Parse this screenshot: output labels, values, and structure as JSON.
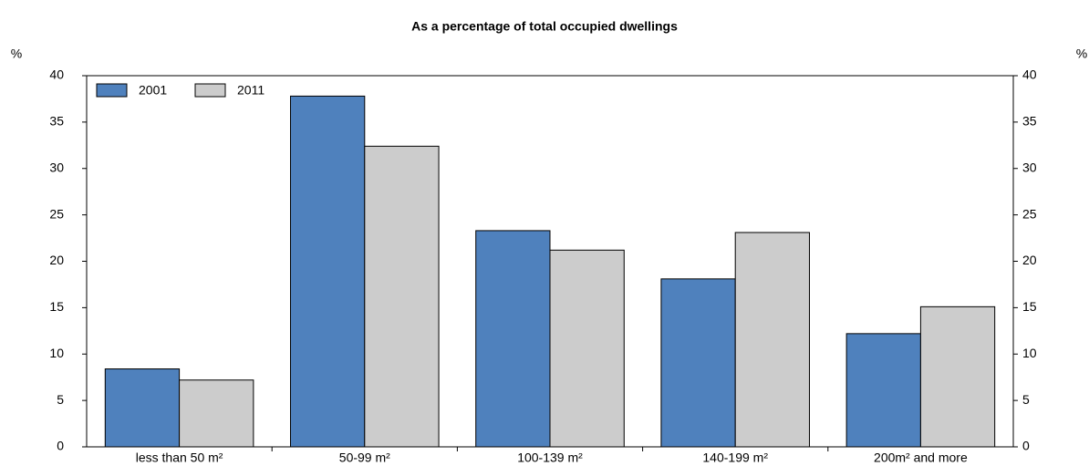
{
  "chart_data": {
    "type": "bar",
    "title": "As a percentage of total occupied dwellings",
    "ylabel": "%",
    "y2label": "%",
    "categories": [
      "less than 50 m²",
      "50-99 m²",
      "100-139 m²",
      "140-199 m²",
      "200m² and more"
    ],
    "series": [
      {
        "name": "2001",
        "color": "#4f81bd",
        "values": [
          8.4,
          37.8,
          23.3,
          18.1,
          12.2
        ]
      },
      {
        "name": "2011",
        "color": "#cccccc",
        "values": [
          7.2,
          32.4,
          21.2,
          23.1,
          15.1
        ]
      }
    ],
    "ylim": [
      0,
      40
    ],
    "yticks": [
      0,
      5,
      10,
      15,
      20,
      25,
      30,
      35,
      40
    ],
    "y2lim": [
      0,
      40
    ],
    "y2ticks": [
      0,
      5,
      10,
      15,
      20,
      25,
      30,
      35,
      40
    ],
    "legend": "top-left",
    "grid": false
  }
}
